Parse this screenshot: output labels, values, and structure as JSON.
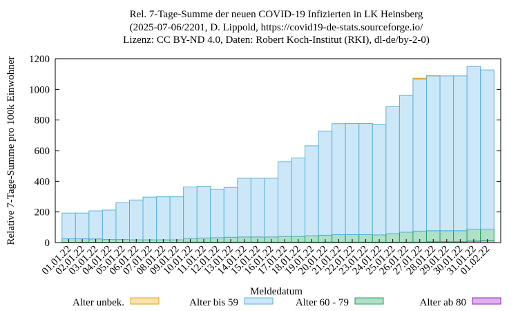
{
  "chart_data": {
    "type": "bar",
    "stacked": true,
    "title": [
      "Rel. 7-Tage-Summe der neuen COVID-19 Infizierten in LK Heinsberg",
      "(2025-07-06/2201, D. Lippold, https://covid19-de-stats.sourceforge.io/",
      "Lizenz: CC BY-ND 4.0, Daten: Robert Koch-Institut (RKI), dl-de/by-2-0)"
    ],
    "x_label": "Meldedatum",
    "y_label": "Relative 7-Tage-Summe pro 100k Einwohner",
    "categories": [
      "01.01.22",
      "02.01.22",
      "03.01.22",
      "04.01.22",
      "05.01.22",
      "06.01.22",
      "07.01.22",
      "08.01.22",
      "09.01.22",
      "10.01.22",
      "11.01.22",
      "12.01.22",
      "13.01.22",
      "14.01.22",
      "15.01.22",
      "16.01.22",
      "17.01.22",
      "18.01.22",
      "19.01.22",
      "20.01.22",
      "21.01.22",
      "22.01.22",
      "23.01.22",
      "24.01.22",
      "25.01.22",
      "26.01.22",
      "27.01.22",
      "28.01.22",
      "29.01.22",
      "30.01.22",
      "31.01.22",
      "01.02.22"
    ],
    "series": [
      {
        "name": "Alter unbek.",
        "color": "#fae3aa",
        "stroke": "#e0a020",
        "values": [
          0,
          0,
          0,
          0,
          0,
          0,
          0,
          0,
          0,
          0,
          0,
          0,
          0,
          0,
          0,
          0,
          0,
          0,
          0,
          0,
          0,
          0,
          0,
          0,
          0,
          0,
          5,
          2,
          0,
          0,
          0,
          0
        ]
      },
      {
        "name": "Alter bis 59",
        "color": "#cce8f8",
        "stroke": "#5ab0d8",
        "values": [
          168,
          168,
          183,
          192,
          240,
          260,
          279,
          281,
          281,
          338,
          338,
          315,
          325,
          383,
          383,
          383,
          488,
          512,
          587,
          679,
          725,
          726,
          726,
          720,
          829,
          892,
          993,
          1010,
          1010,
          1010,
          1062,
          1039
        ]
      },
      {
        "name": "Alter 60 - 79",
        "color": "#b0e0c8",
        "stroke": "#20a060",
        "values": [
          23,
          23,
          22,
          18,
          18,
          16,
          16,
          16,
          16,
          22,
          27,
          29,
          32,
          34,
          34,
          34,
          37,
          37,
          42,
          45,
          49,
          49,
          49,
          47,
          55,
          65,
          72,
          73,
          73,
          73,
          78,
          76
        ]
      },
      {
        "name": "Alter ab 80",
        "color": "#e0b0f0",
        "stroke": "#9020c0",
        "values": [
          2,
          2,
          2,
          2,
          2,
          2,
          2,
          2,
          2,
          3,
          3,
          3,
          3,
          3,
          3,
          3,
          3,
          3,
          3,
          3,
          3,
          3,
          3,
          3,
          3,
          3,
          3,
          5,
          5,
          5,
          10,
          12
        ]
      }
    ],
    "ylim": [
      0,
      1200
    ],
    "yticks": [
      0,
      200,
      400,
      600,
      800,
      1000,
      1200
    ]
  }
}
